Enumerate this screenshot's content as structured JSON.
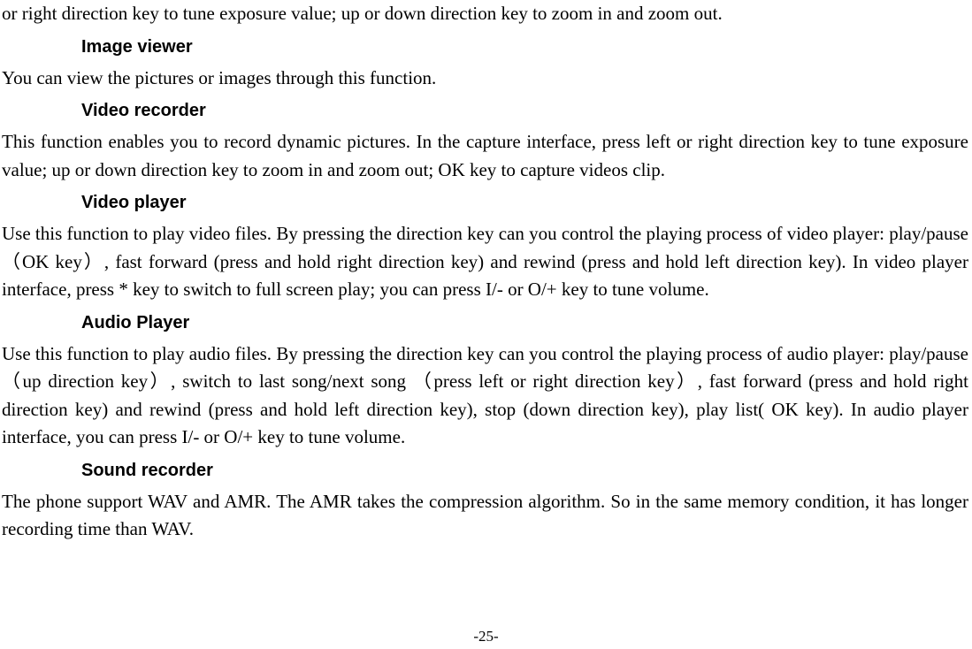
{
  "para_top": "or right direction key to tune exposure value; up or down direction key to zoom in and zoom out.",
  "h_image_viewer": "Image viewer",
  "para_image_viewer": "You can view the pictures or images through this function.",
  "h_video_recorder": "Video recorder",
  "para_video_recorder": "This function enables you to record dynamic pictures. In the capture interface, press left or right direction key to tune exposure value; up or down direction key to zoom in and zoom out; OK key to capture videos clip.",
  "h_video_player": "Video player",
  "para_video_player": "Use this function to play video files. By pressing the direction key can you control the playing process of video player: play/pause（OK key）, fast forward (press and hold right direction key) and rewind (press and hold left direction key). In video player interface, press * key to switch to full screen play; you can press I/- or O/+ key to tune volume.",
  "h_audio_player": "Audio Player",
  "para_audio_player": "Use this function to play audio files. By pressing the direction key can you control the playing process of audio player: play/pause（up direction key）, switch to last song/next song （press left or right direction key）, fast forward (press and hold right direction key) and rewind (press and hold left direction key), stop (down direction key), play list( OK key). In audio player interface, you can press I/- or O/+ key to tune volume.",
  "h_sound_recorder": "Sound recorder",
  "para_sound_recorder": "The phone support WAV and AMR. The AMR takes the compression algorithm. So in the same memory condition, it has longer recording time than WAV.",
  "page_number": "-25-"
}
